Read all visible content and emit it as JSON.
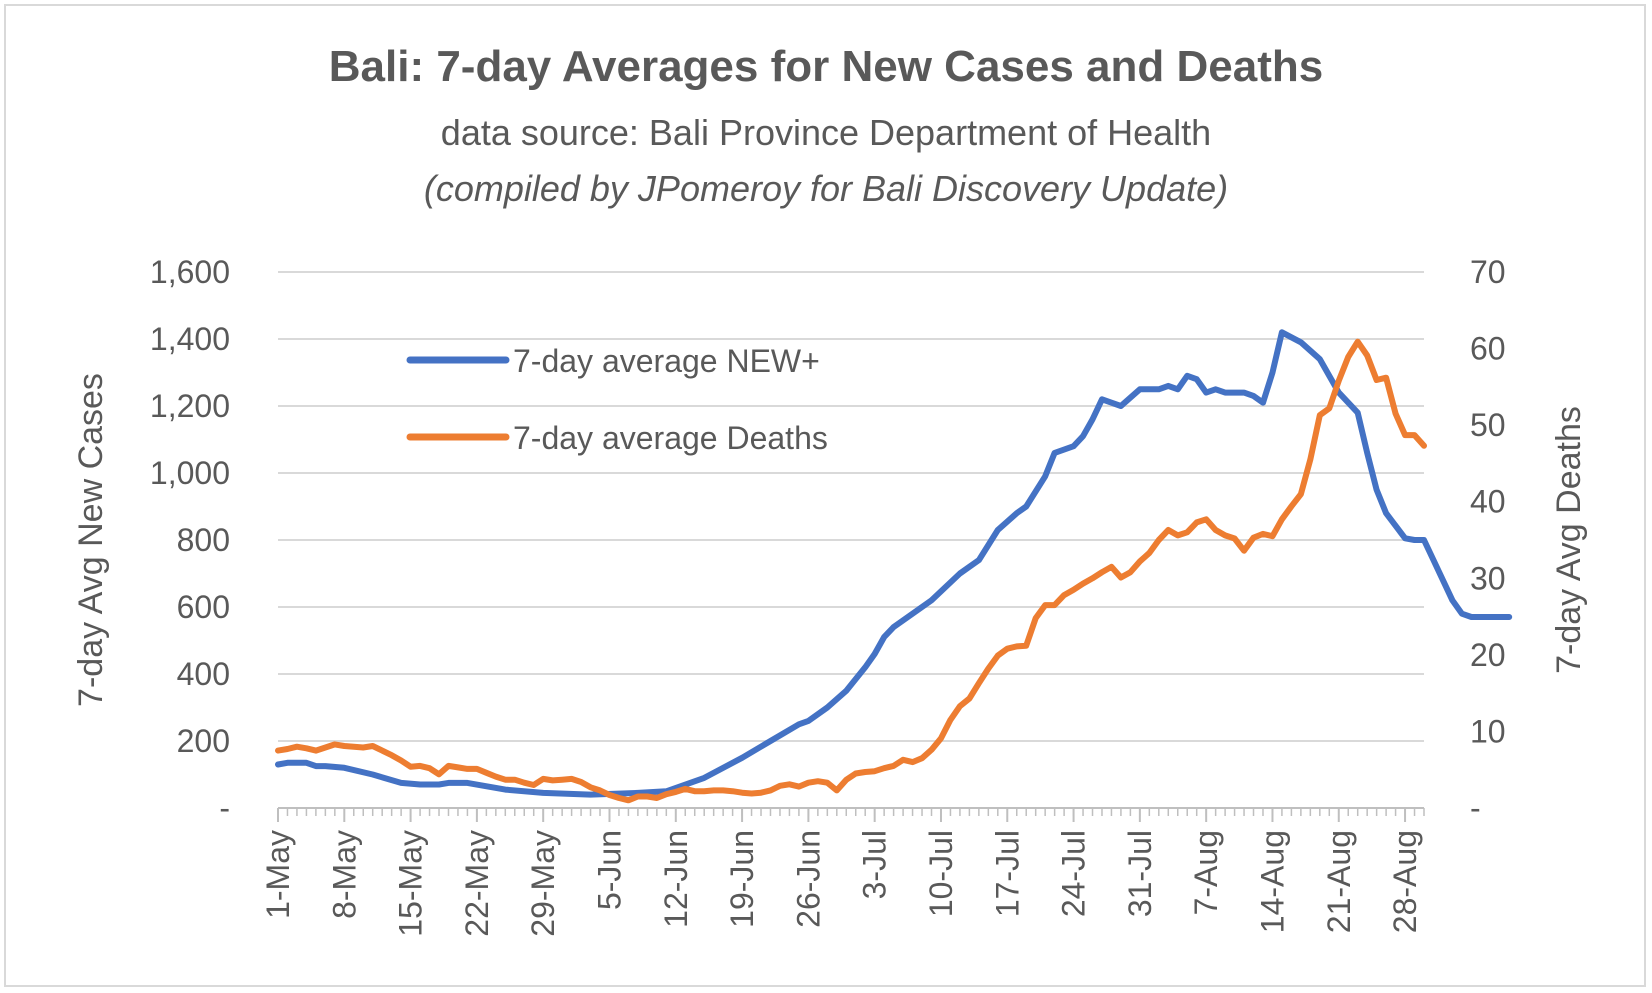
{
  "chart_data": {
    "type": "line",
    "title": "Bali:  7-day Averages for New Cases and Deaths",
    "subtitle": "data source:  Bali Province Department of Health",
    "subtitle2": "(compiled by JPomeroy for Bali Discovery Update)",
    "x_tick_labels": [
      "1-May",
      "8-May",
      "15-May",
      "22-May",
      "29-May",
      "5-Jun",
      "12-Jun",
      "19-Jun",
      "26-Jun",
      "3-Jul",
      "10-Jul",
      "17-Jul",
      "24-Jul",
      "31-Jul",
      "7-Aug",
      "14-Aug",
      "21-Aug",
      "28-Aug"
    ],
    "ylabel": "7-day Avg New Cases",
    "y2label": "7-day Avg Deaths",
    "y_ticks": [
      "-",
      "200",
      "400",
      "600",
      "800",
      "1,000",
      "1,200",
      "1,400",
      "1,600"
    ],
    "y2_ticks": [
      "-",
      "10",
      "20",
      "30",
      "40",
      "50",
      "60",
      "70"
    ],
    "ylim": [
      0,
      1600
    ],
    "y2lim": [
      0,
      70
    ],
    "grid": true,
    "legend_placement": "top-left inside",
    "series": [
      {
        "name": "7-day average NEW+",
        "axis": "left",
        "color": "#4472c4",
        "x": [
          0,
          1,
          3,
          4,
          5,
          7,
          10,
          13,
          15,
          17,
          18,
          19,
          20,
          24,
          28,
          33,
          38,
          41,
          45,
          49,
          52,
          55,
          56,
          58,
          60,
          62,
          63,
          64,
          65,
          69,
          72,
          74,
          76,
          78,
          79,
          81,
          82,
          83,
          84,
          85,
          86,
          87,
          88,
          89,
          91,
          93,
          94,
          95,
          96,
          97,
          98,
          99,
          100,
          102,
          103,
          104,
          105,
          106,
          108,
          110,
          112,
          114,
          115,
          116,
          117,
          119,
          120,
          121,
          122,
          124,
          125,
          126,
          127,
          128,
          129,
          130
        ],
        "values": [
          130,
          135,
          135,
          125,
          125,
          120,
          100,
          75,
          70,
          70,
          75,
          75,
          75,
          55,
          45,
          40,
          45,
          50,
          90,
          150,
          200,
          250,
          260,
          300,
          350,
          420,
          460,
          510,
          540,
          620,
          700,
          740,
          830,
          880,
          900,
          990,
          1060,
          1070,
          1080,
          1110,
          1160,
          1220,
          1210,
          1200,
          1250,
          1250,
          1260,
          1250,
          1290,
          1280,
          1240,
          1250,
          1240,
          1240,
          1230,
          1210,
          1300,
          1420,
          1390,
          1340,
          1240,
          1180,
          1060,
          950,
          880,
          805,
          800,
          800,
          740,
          620,
          580,
          570,
          570,
          570,
          570,
          570
        ]
      },
      {
        "name": "7-day average Deaths",
        "axis": "right",
        "color": "#ed7d31",
        "x": [
          0,
          1,
          2,
          3,
          4,
          5,
          6,
          7,
          8,
          9,
          10,
          11,
          12,
          13,
          14,
          15,
          16,
          17,
          18,
          19,
          20,
          21,
          22,
          23,
          24,
          25,
          26,
          27,
          28,
          29,
          30,
          31,
          32,
          33,
          34,
          35,
          36,
          37,
          38,
          39,
          40,
          41,
          42,
          43,
          44,
          45,
          46,
          47,
          48,
          49,
          50,
          51,
          52,
          53,
          54,
          55,
          56,
          57,
          58,
          59,
          60,
          61,
          62,
          63,
          64,
          65,
          66,
          67,
          68,
          69,
          70,
          71,
          72,
          73,
          74,
          75,
          76,
          77,
          78,
          79,
          80,
          81,
          82,
          83,
          84,
          85,
          86,
          87,
          88,
          89,
          90,
          91,
          92,
          93,
          94,
          95,
          96,
          97,
          98,
          99,
          100,
          101,
          102,
          103,
          104,
          105,
          106,
          107,
          108,
          109,
          110,
          111,
          112,
          113,
          114,
          115,
          116,
          117,
          118,
          119,
          120,
          121
        ],
        "values": [
          7.5,
          7.7,
          8,
          7.8,
          7.5,
          7.9,
          8.3,
          8.1,
          8,
          7.9,
          8.1,
          7.5,
          6.9,
          6.2,
          5.4,
          5.5,
          5.2,
          4.4,
          5.5,
          5.3,
          5.1,
          5.1,
          4.6,
          4.1,
          3.7,
          3.7,
          3.3,
          3,
          3.8,
          3.6,
          3.7,
          3.8,
          3.4,
          2.7,
          2.3,
          1.7,
          1.3,
          1,
          1.5,
          1.5,
          1.3,
          1.8,
          2.1,
          2.5,
          2.2,
          2.2,
          2.3,
          2.3,
          2.2,
          2,
          1.9,
          2,
          2.3,
          2.9,
          3.1,
          2.8,
          3.3,
          3.5,
          3.3,
          2.3,
          3.7,
          4.5,
          4.7,
          4.8,
          5.2,
          5.5,
          6.3,
          6,
          6.5,
          7.6,
          9.1,
          11.5,
          13.3,
          14.3,
          16.3,
          18.2,
          19.9,
          20.8,
          21.1,
          21.2,
          24.8,
          26.5,
          26.5,
          27.8,
          28.5,
          29.3,
          30,
          30.8,
          31.5,
          30.1,
          30.8,
          32.2,
          33.3,
          35,
          36.3,
          35.6,
          36,
          37.3,
          37.7,
          36.3,
          35.6,
          35.2,
          33.6,
          35.3,
          35.8,
          35.5,
          37.7,
          39.4,
          41,
          45.5,
          51.3,
          52.2,
          55.8,
          58.9,
          60.9,
          59.1,
          55.9,
          56.2,
          51.5,
          48.7,
          48.7,
          47.3
        ]
      }
    ]
  }
}
